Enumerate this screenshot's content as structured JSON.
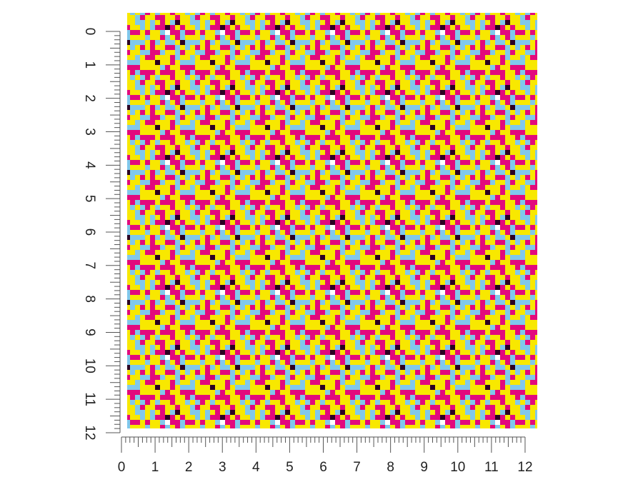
{
  "rulers": {
    "left": {
      "labels": [
        0,
        1,
        2,
        3,
        4,
        5,
        6,
        7,
        8,
        9,
        10,
        11,
        12
      ]
    },
    "bottom": {
      "labels": [
        0,
        1,
        2,
        3,
        4,
        5,
        6,
        7,
        8,
        9,
        10,
        11,
        12
      ]
    }
  }
}
